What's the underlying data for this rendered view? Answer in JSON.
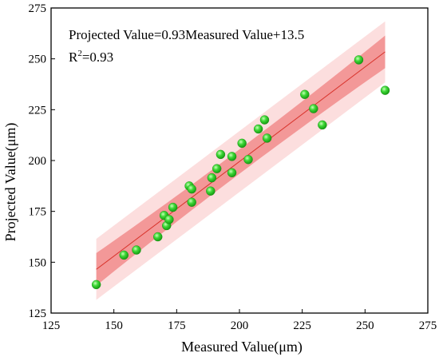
{
  "chart_data": {
    "type": "scatter",
    "xlabel": "Measured Value(μm)",
    "ylabel": "Projected Value(μm)",
    "xlim": [
      125,
      275
    ],
    "ylim": [
      125,
      275
    ],
    "x_ticks": [
      "125",
      "150",
      "175",
      "200",
      "225",
      "250",
      "275"
    ],
    "y_ticks": [
      "125",
      "150",
      "175",
      "200",
      "225",
      "250",
      "275"
    ],
    "equation_text": "Projected Value=0.93Measured Value+13.5",
    "r2_prefix": "R",
    "r2_sup": "2",
    "r2_value": "=0.93",
    "fit": {
      "slope": 0.93,
      "intercept": 13.5,
      "x_range": [
        143,
        258
      ]
    },
    "confidence_band_halfwidth": [
      6,
      8
    ],
    "prediction_band_halfwidth": 15,
    "points": [
      {
        "x": 143,
        "y": 139
      },
      {
        "x": 154,
        "y": 153.5
      },
      {
        "x": 159,
        "y": 156
      },
      {
        "x": 167.5,
        "y": 162.5
      },
      {
        "x": 170,
        "y": 173
      },
      {
        "x": 171,
        "y": 168
      },
      {
        "x": 172,
        "y": 171
      },
      {
        "x": 173.5,
        "y": 177
      },
      {
        "x": 180,
        "y": 187.5
      },
      {
        "x": 181,
        "y": 186
      },
      {
        "x": 181,
        "y": 179.5
      },
      {
        "x": 188.5,
        "y": 185
      },
      {
        "x": 189,
        "y": 191.5
      },
      {
        "x": 191,
        "y": 196
      },
      {
        "x": 192.5,
        "y": 203
      },
      {
        "x": 197,
        "y": 202
      },
      {
        "x": 197,
        "y": 194
      },
      {
        "x": 201,
        "y": 208.5
      },
      {
        "x": 203.5,
        "y": 200.5
      },
      {
        "x": 207.5,
        "y": 215.5
      },
      {
        "x": 210,
        "y": 220
      },
      {
        "x": 211,
        "y": 211
      },
      {
        "x": 226,
        "y": 232.5
      },
      {
        "x": 229.5,
        "y": 225.5
      },
      {
        "x": 233,
        "y": 217.5
      },
      {
        "x": 247.5,
        "y": 249.5
      },
      {
        "x": 258,
        "y": 234.5
      }
    ],
    "colors": {
      "fit_line": "#e5534b",
      "confidence_band": "#f08080",
      "prediction_band": "#fbd6d6",
      "point_fill": "#22c41d",
      "point_highlight": "#b8f5a8",
      "point_edge": "#148a10"
    },
    "grid": false,
    "legend": "none"
  }
}
